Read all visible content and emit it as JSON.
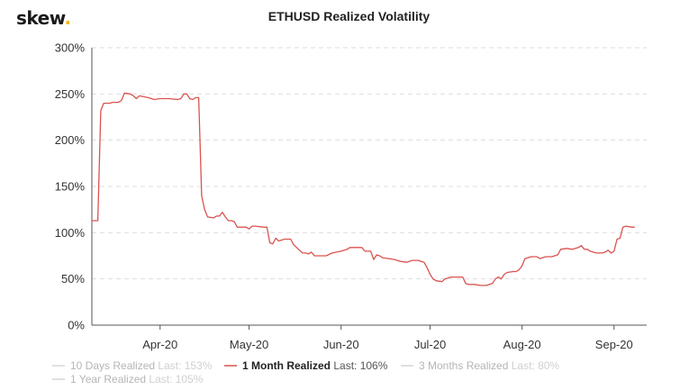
{
  "brand": {
    "name": "skew",
    "dot": "."
  },
  "chart_data": {
    "type": "line",
    "title": "ETHUSD Realized Volatility",
    "xlabel": "",
    "ylabel": "",
    "ylim": [
      0,
      300
    ],
    "yticks": [
      0,
      50,
      100,
      150,
      200,
      250,
      300
    ],
    "ytick_labels": [
      "0%",
      "50%",
      "100%",
      "150%",
      "200%",
      "250%",
      "300%"
    ],
    "xlim": [
      "2020-03-09",
      "2020-09-12"
    ],
    "xticks": [
      "2020-04-01",
      "2020-05-01",
      "2020-06-01",
      "2020-07-01",
      "2020-08-01",
      "2020-09-01"
    ],
    "xtick_labels": [
      "Apr-20",
      "May-20",
      "Jun-20",
      "Jul-20",
      "Aug-20",
      "Sep-20"
    ],
    "grid": true,
    "legend_position": "bottom",
    "legend": [
      {
        "name": "10 Days Realized",
        "last_label": "Last: 153%",
        "active": false,
        "color": "#c8c8c8"
      },
      {
        "name": "1 Month Realized",
        "last_label": "Last: 106%",
        "active": true,
        "color": "#d9534f"
      },
      {
        "name": "3 Months Realized",
        "last_label": "Last: 80%",
        "active": false,
        "color": "#c8c8c8"
      },
      {
        "name": "1 Year Realized",
        "last_label": "Last: 105%",
        "active": false,
        "color": "#c8c8c8"
      }
    ],
    "series": [
      {
        "name": "1 Month Realized",
        "color": "#d9534f",
        "points": [
          [
            "2020-03-09",
            113
          ],
          [
            "2020-03-11",
            113
          ],
          [
            "2020-03-12",
            232
          ],
          [
            "2020-03-13",
            240
          ],
          [
            "2020-03-15",
            240
          ],
          [
            "2020-03-16",
            241
          ],
          [
            "2020-03-18",
            241
          ],
          [
            "2020-03-19",
            243
          ],
          [
            "2020-03-20",
            251
          ],
          [
            "2020-03-22",
            250
          ],
          [
            "2020-03-23",
            248
          ],
          [
            "2020-03-24",
            245
          ],
          [
            "2020-03-25",
            248
          ],
          [
            "2020-03-28",
            246
          ],
          [
            "2020-03-30",
            244
          ],
          [
            "2020-04-01",
            245
          ],
          [
            "2020-04-04",
            245
          ],
          [
            "2020-04-07",
            244
          ],
          [
            "2020-04-08",
            245
          ],
          [
            "2020-04-09",
            250
          ],
          [
            "2020-04-10",
            250
          ],
          [
            "2020-04-11",
            245
          ],
          [
            "2020-04-12",
            244
          ],
          [
            "2020-04-13",
            246
          ],
          [
            "2020-04-14",
            246
          ],
          [
            "2020-04-15",
            140
          ],
          [
            "2020-04-16",
            125
          ],
          [
            "2020-04-17",
            117
          ],
          [
            "2020-04-19",
            116
          ],
          [
            "2020-04-20",
            118
          ],
          [
            "2020-04-21",
            118
          ],
          [
            "2020-04-22",
            122
          ],
          [
            "2020-04-23",
            117
          ],
          [
            "2020-04-24",
            113
          ],
          [
            "2020-04-25",
            113
          ],
          [
            "2020-04-26",
            112
          ],
          [
            "2020-04-27",
            106
          ],
          [
            "2020-04-30",
            106
          ],
          [
            "2020-05-01",
            104
          ],
          [
            "2020-05-02",
            107
          ],
          [
            "2020-05-03",
            107
          ],
          [
            "2020-05-06",
            106
          ],
          [
            "2020-05-07",
            106
          ],
          [
            "2020-05-08",
            89
          ],
          [
            "2020-05-09",
            88
          ],
          [
            "2020-05-10",
            94
          ],
          [
            "2020-05-11",
            91
          ],
          [
            "2020-05-12",
            92
          ],
          [
            "2020-05-13",
            93
          ],
          [
            "2020-05-15",
            93
          ],
          [
            "2020-05-16",
            87
          ],
          [
            "2020-05-18",
            81
          ],
          [
            "2020-05-19",
            78
          ],
          [
            "2020-05-20",
            78
          ],
          [
            "2020-05-21",
            77
          ],
          [
            "2020-05-22",
            79
          ],
          [
            "2020-05-23",
            75
          ],
          [
            "2020-05-25",
            75
          ],
          [
            "2020-05-27",
            75
          ],
          [
            "2020-05-29",
            78
          ],
          [
            "2020-06-01",
            80
          ],
          [
            "2020-06-03",
            82
          ],
          [
            "2020-06-04",
            84
          ],
          [
            "2020-06-07",
            84
          ],
          [
            "2020-06-08",
            84
          ],
          [
            "2020-06-09",
            80
          ],
          [
            "2020-06-10",
            80
          ],
          [
            "2020-06-11",
            80
          ],
          [
            "2020-06-12",
            71
          ],
          [
            "2020-06-13",
            76
          ],
          [
            "2020-06-14",
            75
          ],
          [
            "2020-06-15",
            73
          ],
          [
            "2020-06-17",
            72
          ],
          [
            "2020-06-19",
            71
          ],
          [
            "2020-06-21",
            69
          ],
          [
            "2020-06-23",
            68
          ],
          [
            "2020-06-25",
            70
          ],
          [
            "2020-06-27",
            70
          ],
          [
            "2020-06-29",
            68
          ],
          [
            "2020-06-30",
            62
          ],
          [
            "2020-07-01",
            55
          ],
          [
            "2020-07-02",
            50
          ],
          [
            "2020-07-03",
            48
          ],
          [
            "2020-07-05",
            47
          ],
          [
            "2020-07-06",
            50
          ],
          [
            "2020-07-08",
            52
          ],
          [
            "2020-07-10",
            52
          ],
          [
            "2020-07-12",
            52
          ],
          [
            "2020-07-13",
            45
          ],
          [
            "2020-07-14",
            44
          ],
          [
            "2020-07-16",
            44
          ],
          [
            "2020-07-18",
            43
          ],
          [
            "2020-07-20",
            43
          ],
          [
            "2020-07-22",
            45
          ],
          [
            "2020-07-23",
            50
          ],
          [
            "2020-07-24",
            52
          ],
          [
            "2020-07-25",
            50
          ],
          [
            "2020-07-26",
            55
          ],
          [
            "2020-07-27",
            57
          ],
          [
            "2020-07-29",
            58
          ],
          [
            "2020-07-30",
            58
          ],
          [
            "2020-07-31",
            60
          ],
          [
            "2020-08-01",
            64
          ],
          [
            "2020-08-02",
            72
          ],
          [
            "2020-08-03",
            73
          ],
          [
            "2020-08-04",
            74
          ],
          [
            "2020-08-06",
            74
          ],
          [
            "2020-08-07",
            72
          ],
          [
            "2020-08-09",
            74
          ],
          [
            "2020-08-11",
            74
          ],
          [
            "2020-08-13",
            76
          ],
          [
            "2020-08-14",
            82
          ],
          [
            "2020-08-16",
            83
          ],
          [
            "2020-08-18",
            82
          ],
          [
            "2020-08-20",
            84
          ],
          [
            "2020-08-21",
            86
          ],
          [
            "2020-08-22",
            82
          ],
          [
            "2020-08-23",
            82
          ],
          [
            "2020-08-24",
            80
          ],
          [
            "2020-08-26",
            78
          ],
          [
            "2020-08-28",
            78
          ],
          [
            "2020-08-29",
            79
          ],
          [
            "2020-08-30",
            81
          ],
          [
            "2020-08-31",
            78
          ],
          [
            "2020-09-01",
            80
          ],
          [
            "2020-09-02",
            93
          ],
          [
            "2020-09-03",
            94
          ],
          [
            "2020-09-04",
            106
          ],
          [
            "2020-09-05",
            107
          ],
          [
            "2020-09-07",
            106
          ],
          [
            "2020-09-08",
            106
          ]
        ]
      }
    ]
  }
}
